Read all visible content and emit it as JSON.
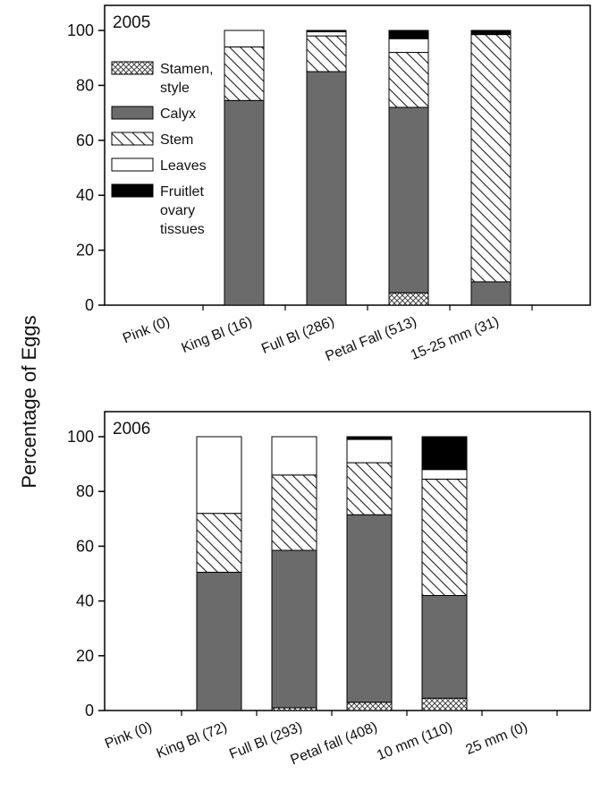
{
  "chart_data": {
    "ylabel": "Percentage of Eggs",
    "legend": {
      "placement": "upper-left of top panel",
      "entries": [
        {
          "key": "stamen",
          "lines": [
            "Stamen,",
            "style"
          ]
        },
        {
          "key": "calyx",
          "lines": [
            "Calyx"
          ]
        },
        {
          "key": "stem",
          "lines": [
            "Stem"
          ]
        },
        {
          "key": "leaves",
          "lines": [
            "Leaves"
          ]
        },
        {
          "key": "fruitlet",
          "lines": [
            "Fruitlet",
            "ovary",
            "tissues"
          ]
        }
      ]
    },
    "series": [
      {
        "key": "stamen",
        "name": "Stamen, style",
        "pattern": "crosshatch"
      },
      {
        "key": "calyx",
        "name": "Calyx",
        "color": "#6b6b6b"
      },
      {
        "key": "stem",
        "name": "Stem",
        "pattern": "diagonal"
      },
      {
        "key": "leaves",
        "name": "Leaves",
        "color": "#ffffff"
      },
      {
        "key": "fruitlet",
        "name": "Fruitlet ovary tissues",
        "color": "#000000"
      }
    ],
    "panels": [
      {
        "type": "bar",
        "stacked": true,
        "year": "2005",
        "ylim": [
          0,
          100
        ],
        "yticks": [
          "0",
          "20",
          "40",
          "60",
          "80",
          "100"
        ],
        "categories": [
          "Pink (0)",
          "King Bl (16)",
          "Full Bl (286)",
          "Petal Fall (513)",
          "15-25 mm (31)"
        ],
        "stacks": [
          null,
          {
            "stamen": 0,
            "calyx": 74.5,
            "stem": 19.5,
            "leaves": 6,
            "fruitlet": 0
          },
          {
            "stamen": 0,
            "calyx": 85,
            "stem": 13,
            "leaves": 1.5,
            "fruitlet": 0.5
          },
          {
            "stamen": 4.5,
            "calyx": 67.5,
            "stem": 20,
            "leaves": 5,
            "fruitlet": 3
          },
          {
            "stamen": 0,
            "calyx": 8.5,
            "stem": 90,
            "leaves": 0,
            "fruitlet": 1.5
          }
        ]
      },
      {
        "type": "bar",
        "stacked": true,
        "year": "2006",
        "ylim": [
          0,
          100
        ],
        "yticks": [
          "0",
          "20",
          "40",
          "60",
          "80",
          "100"
        ],
        "categories": [
          "Pink (0)",
          "King Bl (72)",
          "Full Bl (293)",
          "Petal fall (408)",
          "10 mm (110)",
          "25 mm (0)"
        ],
        "stacks": [
          null,
          {
            "stamen": 0,
            "calyx": 50.5,
            "stem": 21.5,
            "leaves": 28,
            "fruitlet": 0
          },
          {
            "stamen": 1,
            "calyx": 57.5,
            "stem": 27.5,
            "leaves": 14,
            "fruitlet": 0
          },
          {
            "stamen": 3,
            "calyx": 68.5,
            "stem": 19,
            "leaves": 8.5,
            "fruitlet": 1
          },
          {
            "stamen": 4.5,
            "calyx": 37.5,
            "stem": 42.5,
            "leaves": 3.5,
            "fruitlet": 12
          },
          null
        ]
      }
    ]
  }
}
